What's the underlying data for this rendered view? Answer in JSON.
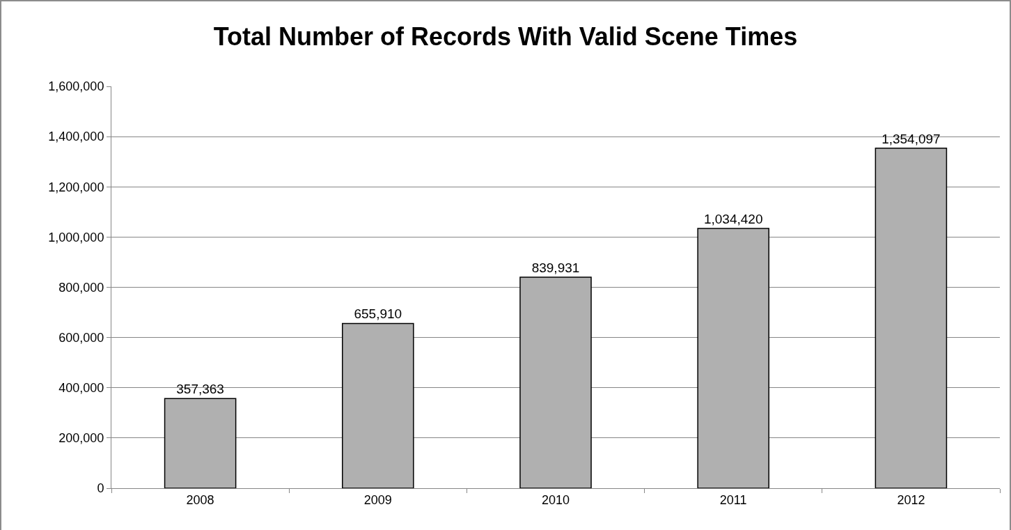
{
  "chart_data": {
    "type": "bar",
    "title": "Total Number of Records With Valid Scene Times",
    "categories": [
      "2008",
      "2009",
      "2010",
      "2011",
      "2012"
    ],
    "values": [
      357363,
      655910,
      839931,
      1034420,
      1354097
    ],
    "value_labels": [
      "357,363",
      "655,910",
      "839,931",
      "1,034,420",
      "1,354,097"
    ],
    "color": "#b0b0b0",
    "ylim": [
      0,
      1600000
    ],
    "yticks": [
      0,
      {
        "value": 200000,
        "label": "200,000"
      },
      {
        "value": 400000,
        "label": "400,000"
      },
      {
        "value": 600000,
        "label": "600,000"
      },
      {
        "value": 800000,
        "label": "800,000"
      },
      {
        "value": 1000000,
        "label": "1,000,000"
      },
      {
        "value": 1200000,
        "label": "1,200,000"
      },
      {
        "value": 1400000,
        "label": "1,400,000"
      },
      {
        "value": 1600000,
        "label": "1,600,000"
      }
    ],
    "grid": "y"
  }
}
